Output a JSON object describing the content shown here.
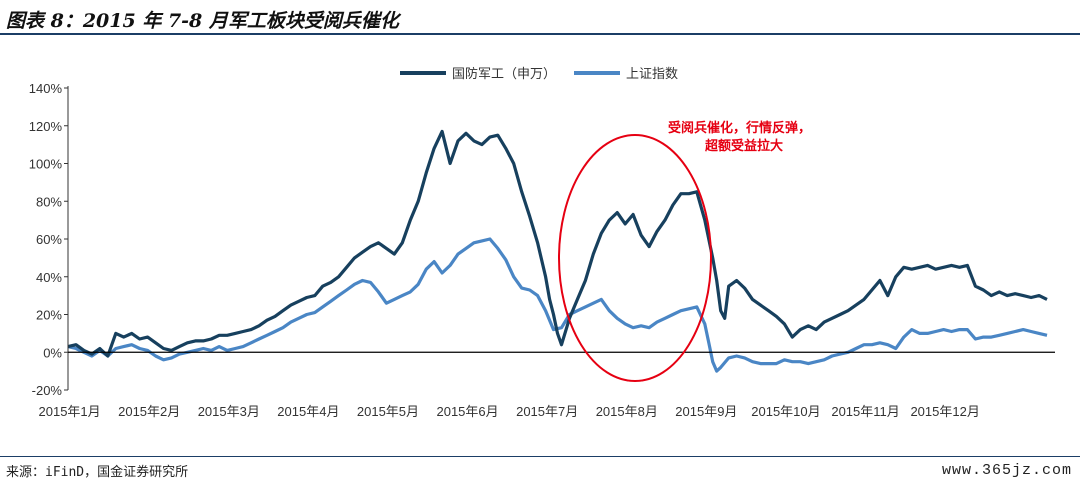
{
  "header": {
    "title": "图表 8：2015 年 7-8 月军工板块受阅兵催化"
  },
  "footer": {
    "source": "来源：iFinD，国金证券研究所",
    "watermark": "www.365jz.com"
  },
  "chart_data": {
    "type": "line",
    "title": "",
    "xlabel": "",
    "ylabel": "",
    "ylim": [
      -20,
      140
    ],
    "y_ticks": [
      "-20%",
      "0%",
      "20%",
      "40%",
      "60%",
      "80%",
      "100%",
      "120%",
      "140%"
    ],
    "x_tick_labels": [
      "2015年1月",
      "2015年2月",
      "2015年3月",
      "2015年4月",
      "2015年5月",
      "2015年6月",
      "2015年7月",
      "2015年8月",
      "2015年9月",
      "2015年10月",
      "2015年11月",
      "2015年12月"
    ],
    "grid": false,
    "legend_position": "top-center",
    "annotation": {
      "lines": [
        "受阅兵催化，行情反弹，",
        "超额受益拉大"
      ],
      "color": "#e60012",
      "highlight": "ellipse around 2015年7月–2015年8月"
    },
    "series": [
      {
        "name": "国防军工（申万）",
        "color": "#17405e",
        "points": [
          [
            0,
            3
          ],
          [
            0.1,
            4
          ],
          [
            0.2,
            1
          ],
          [
            0.3,
            -1
          ],
          [
            0.4,
            2
          ],
          [
            0.5,
            -2
          ],
          [
            0.6,
            10
          ],
          [
            0.7,
            8
          ],
          [
            0.8,
            10
          ],
          [
            0.9,
            7
          ],
          [
            1.0,
            8
          ],
          [
            1.1,
            5
          ],
          [
            1.2,
            2
          ],
          [
            1.3,
            1
          ],
          [
            1.4,
            3
          ],
          [
            1.5,
            5
          ],
          [
            1.6,
            6
          ],
          [
            1.7,
            6
          ],
          [
            1.8,
            7
          ],
          [
            1.9,
            9
          ],
          [
            2.0,
            9
          ],
          [
            2.1,
            10
          ],
          [
            2.2,
            11
          ],
          [
            2.3,
            12
          ],
          [
            2.4,
            14
          ],
          [
            2.5,
            17
          ],
          [
            2.6,
            19
          ],
          [
            2.7,
            22
          ],
          [
            2.8,
            25
          ],
          [
            2.9,
            27
          ],
          [
            3.0,
            29
          ],
          [
            3.1,
            30
          ],
          [
            3.2,
            35
          ],
          [
            3.3,
            37
          ],
          [
            3.4,
            40
          ],
          [
            3.5,
            45
          ],
          [
            3.6,
            50
          ],
          [
            3.7,
            53
          ],
          [
            3.8,
            56
          ],
          [
            3.9,
            58
          ],
          [
            4.0,
            55
          ],
          [
            4.1,
            52
          ],
          [
            4.2,
            58
          ],
          [
            4.3,
            70
          ],
          [
            4.4,
            80
          ],
          [
            4.5,
            95
          ],
          [
            4.6,
            108
          ],
          [
            4.7,
            117
          ],
          [
            4.8,
            100
          ],
          [
            4.9,
            112
          ],
          [
            5.0,
            116
          ],
          [
            5.1,
            112
          ],
          [
            5.2,
            110
          ],
          [
            5.3,
            114
          ],
          [
            5.4,
            115
          ],
          [
            5.5,
            108
          ],
          [
            5.6,
            100
          ],
          [
            5.7,
            85
          ],
          [
            5.8,
            72
          ],
          [
            5.9,
            58
          ],
          [
            6.0,
            40
          ],
          [
            6.05,
            28
          ],
          [
            6.1,
            20
          ],
          [
            6.15,
            10
          ],
          [
            6.2,
            4
          ],
          [
            6.3,
            18
          ],
          [
            6.4,
            28
          ],
          [
            6.5,
            38
          ],
          [
            6.6,
            52
          ],
          [
            6.7,
            63
          ],
          [
            6.8,
            70
          ],
          [
            6.9,
            74
          ],
          [
            7.0,
            68
          ],
          [
            7.1,
            73
          ],
          [
            7.2,
            62
          ],
          [
            7.3,
            56
          ],
          [
            7.4,
            64
          ],
          [
            7.5,
            70
          ],
          [
            7.6,
            78
          ],
          [
            7.7,
            84
          ],
          [
            7.8,
            84
          ],
          [
            7.9,
            85
          ],
          [
            8.0,
            70
          ],
          [
            8.1,
            50
          ],
          [
            8.15,
            38
          ],
          [
            8.2,
            22
          ],
          [
            8.25,
            18
          ],
          [
            8.3,
            35
          ],
          [
            8.4,
            38
          ],
          [
            8.5,
            34
          ],
          [
            8.6,
            28
          ],
          [
            8.7,
            25
          ],
          [
            8.8,
            22
          ],
          [
            8.9,
            19
          ],
          [
            9.0,
            15
          ],
          [
            9.1,
            8
          ],
          [
            9.2,
            12
          ],
          [
            9.3,
            14
          ],
          [
            9.4,
            12
          ],
          [
            9.5,
            16
          ],
          [
            9.6,
            18
          ],
          [
            9.7,
            20
          ],
          [
            9.8,
            22
          ],
          [
            9.9,
            25
          ],
          [
            10.0,
            28
          ],
          [
            10.1,
            33
          ],
          [
            10.2,
            38
          ],
          [
            10.3,
            30
          ],
          [
            10.4,
            40
          ],
          [
            10.5,
            45
          ],
          [
            10.6,
            44
          ],
          [
            10.7,
            45
          ],
          [
            10.8,
            46
          ],
          [
            10.9,
            44
          ],
          [
            11.0,
            45
          ],
          [
            11.1,
            46
          ],
          [
            11.2,
            45
          ],
          [
            11.3,
            46
          ],
          [
            11.4,
            35
          ],
          [
            11.5,
            33
          ],
          [
            11.6,
            30
          ],
          [
            11.7,
            32
          ],
          [
            11.8,
            30
          ],
          [
            11.9,
            31
          ],
          [
            12.0,
            30
          ],
          [
            12.1,
            29
          ],
          [
            12.2,
            30
          ],
          [
            12.3,
            28
          ]
        ]
      },
      {
        "name": "上证指数",
        "color": "#4a86c5",
        "points": [
          [
            0,
            3
          ],
          [
            0.1,
            2
          ],
          [
            0.2,
            0
          ],
          [
            0.3,
            -2
          ],
          [
            0.4,
            1
          ],
          [
            0.5,
            -2
          ],
          [
            0.6,
            2
          ],
          [
            0.7,
            3
          ],
          [
            0.8,
            4
          ],
          [
            0.9,
            2
          ],
          [
            1.0,
            1
          ],
          [
            1.1,
            -2
          ],
          [
            1.2,
            -4
          ],
          [
            1.3,
            -3
          ],
          [
            1.4,
            -1
          ],
          [
            1.5,
            0
          ],
          [
            1.6,
            1
          ],
          [
            1.7,
            2
          ],
          [
            1.8,
            1
          ],
          [
            1.9,
            3
          ],
          [
            2.0,
            1
          ],
          [
            2.1,
            2
          ],
          [
            2.2,
            3
          ],
          [
            2.3,
            5
          ],
          [
            2.4,
            7
          ],
          [
            2.5,
            9
          ],
          [
            2.6,
            11
          ],
          [
            2.7,
            13
          ],
          [
            2.8,
            16
          ],
          [
            2.9,
            18
          ],
          [
            3.0,
            20
          ],
          [
            3.1,
            21
          ],
          [
            3.2,
            24
          ],
          [
            3.3,
            27
          ],
          [
            3.4,
            30
          ],
          [
            3.5,
            33
          ],
          [
            3.6,
            36
          ],
          [
            3.7,
            38
          ],
          [
            3.8,
            37
          ],
          [
            3.9,
            32
          ],
          [
            4.0,
            26
          ],
          [
            4.1,
            28
          ],
          [
            4.2,
            30
          ],
          [
            4.3,
            32
          ],
          [
            4.4,
            36
          ],
          [
            4.5,
            44
          ],
          [
            4.6,
            48
          ],
          [
            4.7,
            42
          ],
          [
            4.8,
            46
          ],
          [
            4.9,
            52
          ],
          [
            5.0,
            55
          ],
          [
            5.1,
            58
          ],
          [
            5.2,
            59
          ],
          [
            5.3,
            60
          ],
          [
            5.4,
            55
          ],
          [
            5.5,
            49
          ],
          [
            5.6,
            40
          ],
          [
            5.7,
            34
          ],
          [
            5.8,
            33
          ],
          [
            5.9,
            30
          ],
          [
            6.0,
            22
          ],
          [
            6.1,
            12
          ],
          [
            6.2,
            13
          ],
          [
            6.3,
            20
          ],
          [
            6.4,
            22
          ],
          [
            6.5,
            24
          ],
          [
            6.6,
            26
          ],
          [
            6.7,
            28
          ],
          [
            6.8,
            22
          ],
          [
            6.9,
            18
          ],
          [
            7.0,
            15
          ],
          [
            7.1,
            13
          ],
          [
            7.2,
            14
          ],
          [
            7.3,
            13
          ],
          [
            7.4,
            16
          ],
          [
            7.5,
            18
          ],
          [
            7.6,
            20
          ],
          [
            7.7,
            22
          ],
          [
            7.8,
            23
          ],
          [
            7.9,
            24
          ],
          [
            8.0,
            15
          ],
          [
            8.05,
            5
          ],
          [
            8.1,
            -5
          ],
          [
            8.15,
            -10
          ],
          [
            8.2,
            -8
          ],
          [
            8.3,
            -3
          ],
          [
            8.4,
            -2
          ],
          [
            8.5,
            -3
          ],
          [
            8.6,
            -5
          ],
          [
            8.7,
            -6
          ],
          [
            8.8,
            -6
          ],
          [
            8.9,
            -6
          ],
          [
            9.0,
            -4
          ],
          [
            9.1,
            -5
          ],
          [
            9.2,
            -5
          ],
          [
            9.3,
            -6
          ],
          [
            9.4,
            -5
          ],
          [
            9.5,
            -4
          ],
          [
            9.6,
            -2
          ],
          [
            9.7,
            -1
          ],
          [
            9.8,
            0
          ],
          [
            9.9,
            2
          ],
          [
            10.0,
            4
          ],
          [
            10.1,
            4
          ],
          [
            10.2,
            5
          ],
          [
            10.3,
            4
          ],
          [
            10.4,
            2
          ],
          [
            10.5,
            8
          ],
          [
            10.6,
            12
          ],
          [
            10.7,
            10
          ],
          [
            10.8,
            10
          ],
          [
            10.9,
            11
          ],
          [
            11.0,
            12
          ],
          [
            11.1,
            11
          ],
          [
            11.2,
            12
          ],
          [
            11.3,
            12
          ],
          [
            11.4,
            7
          ],
          [
            11.5,
            8
          ],
          [
            11.6,
            8
          ],
          [
            11.7,
            9
          ],
          [
            11.8,
            10
          ],
          [
            11.9,
            11
          ],
          [
            12.0,
            12
          ],
          [
            12.1,
            11
          ],
          [
            12.2,
            10
          ],
          [
            12.3,
            9
          ]
        ]
      }
    ]
  }
}
